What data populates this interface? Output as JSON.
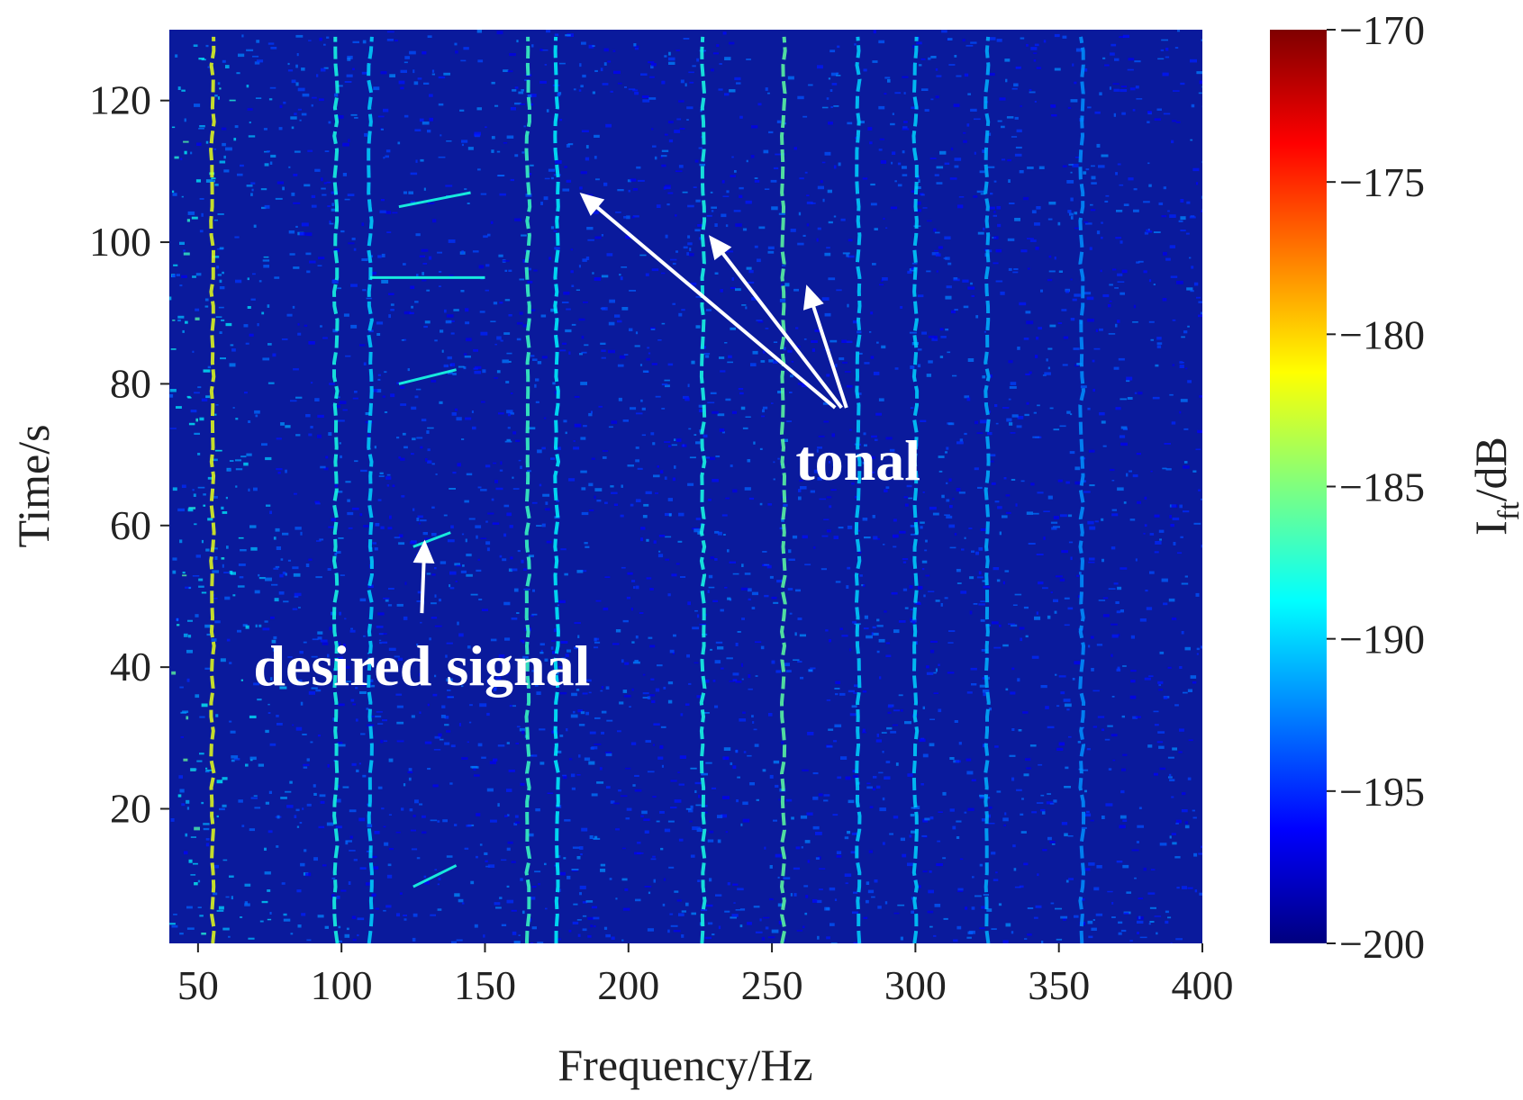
{
  "chart_data": {
    "type": "heatmap",
    "title": "",
    "xlabel": "Frequency/Hz",
    "ylabel": "Time/s",
    "xlim": [
      40,
      400
    ],
    "ylim": [
      1,
      130
    ],
    "x_ticks": [
      50,
      100,
      150,
      200,
      250,
      300,
      350,
      400
    ],
    "y_ticks": [
      20,
      40,
      60,
      80,
      100,
      120
    ],
    "colorbar": {
      "label_main": "I",
      "label_sub": "ft",
      "label_unit": "/dB",
      "range": [
        -200,
        -170
      ],
      "ticks": [
        -170,
        -175,
        -180,
        -185,
        -190,
        -195,
        -200
      ],
      "colormap": "jet",
      "colors": [
        "#00007f",
        "#0000ff",
        "#007fff",
        "#00ffff",
        "#7fff7f",
        "#ffff00",
        "#ff7f00",
        "#ff0000",
        "#7f0000"
      ]
    },
    "background_level_db": -197,
    "tonal_lines": [
      {
        "freq": 55,
        "level_db": -182
      },
      {
        "freq": 98,
        "level_db": -188
      },
      {
        "freq": 110,
        "level_db": -190
      },
      {
        "freq": 165,
        "level_db": -187
      },
      {
        "freq": 175,
        "level_db": -189
      },
      {
        "freq": 226,
        "level_db": -188
      },
      {
        "freq": 254,
        "level_db": -186
      },
      {
        "freq": 280,
        "level_db": -190
      },
      {
        "freq": 300,
        "level_db": -190
      },
      {
        "freq": 325,
        "level_db": -191
      },
      {
        "freq": 358,
        "level_db": -192
      }
    ],
    "annotations": [
      {
        "text": "tonal",
        "x": 280,
        "y": 69,
        "arrows_to": [
          [
            183,
            107
          ],
          [
            228,
            101
          ],
          [
            262,
            94
          ]
        ]
      },
      {
        "text": "desired signal",
        "x": 128,
        "y": 40,
        "arrows_to": [
          [
            129,
            58
          ]
        ]
      }
    ]
  }
}
